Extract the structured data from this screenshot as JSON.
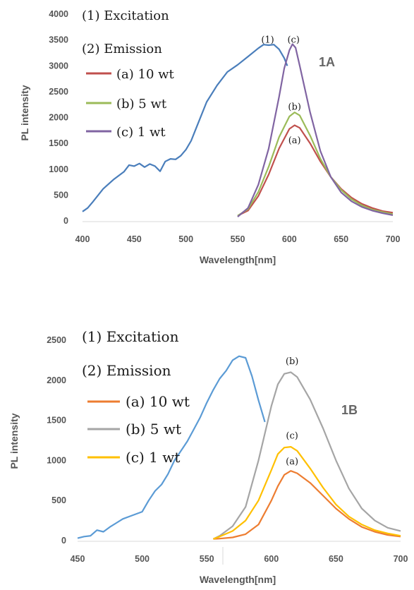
{
  "chart_data": [
    {
      "id": "1A",
      "type": "line",
      "panel_label": "1A",
      "xlabel": "Wavelength[nm]",
      "ylabel": "PL intensity",
      "xlim": [
        400,
        700
      ],
      "ylim": [
        0,
        4000
      ],
      "xticks": [
        400,
        450,
        500,
        550,
        600,
        650,
        700
      ],
      "yticks": [
        0,
        500,
        1000,
        1500,
        2000,
        2500,
        3000,
        3500,
        4000
      ],
      "grid": false,
      "legend_position": "top-left",
      "legend_headers": [
        "(1) Excitation",
        "(2) Emission"
      ],
      "series": [
        {
          "name": "(1) Excitation",
          "legend": false,
          "color": "#4a7ebb",
          "x": [
            400,
            405,
            410,
            420,
            430,
            440,
            445,
            450,
            455,
            460,
            465,
            470,
            475,
            480,
            485,
            490,
            495,
            500,
            505,
            510,
            520,
            530,
            540,
            550,
            560,
            570,
            575,
            580,
            585,
            590,
            595,
            598
          ],
          "y": [
            180,
            250,
            370,
            620,
            800,
            950,
            1080,
            1060,
            1110,
            1040,
            1100,
            1060,
            960,
            1150,
            1200,
            1190,
            1260,
            1380,
            1550,
            1800,
            2300,
            2620,
            2880,
            3020,
            3180,
            3340,
            3410,
            3400,
            3410,
            3320,
            3150,
            3000
          ]
        },
        {
          "name": "(a) 10 wt",
          "legend": true,
          "color": "#c0504d",
          "x": [
            550,
            560,
            570,
            580,
            590,
            600,
            605,
            610,
            620,
            630,
            640,
            650,
            660,
            670,
            680,
            690,
            700
          ],
          "y": [
            100,
            200,
            480,
            900,
            1400,
            1780,
            1850,
            1800,
            1500,
            1150,
            850,
            620,
            450,
            330,
            250,
            190,
            160
          ]
        },
        {
          "name": "(b) 5 wt",
          "legend": true,
          "color": "#9bbb59",
          "x": [
            550,
            560,
            570,
            580,
            590,
            600,
            605,
            610,
            620,
            630,
            640,
            650,
            660,
            670,
            680,
            690,
            700
          ],
          "y": [
            100,
            230,
            560,
            1050,
            1620,
            2020,
            2100,
            2040,
            1650,
            1200,
            850,
            600,
            420,
            300,
            220,
            170,
            130
          ]
        },
        {
          "name": "(c) 1 wt",
          "legend": true,
          "color": "#8064a2",
          "x": [
            550,
            560,
            570,
            580,
            590,
            595,
            600,
            603,
            606,
            610,
            620,
            630,
            640,
            650,
            660,
            670,
            680,
            690,
            700
          ],
          "y": [
            80,
            250,
            700,
            1400,
            2400,
            2950,
            3300,
            3420,
            3350,
            3000,
            2100,
            1350,
            850,
            550,
            380,
            270,
            200,
            150,
            110
          ]
        }
      ],
      "annotations": [
        {
          "text": "(1)",
          "x": 579,
          "y": 3450
        },
        {
          "text": "(c)",
          "x": 604,
          "y": 3450
        },
        {
          "text": "(b)",
          "x": 605,
          "y": 2150
        },
        {
          "text": "(a)",
          "x": 605,
          "y": 1500
        }
      ]
    },
    {
      "id": "1B",
      "type": "line",
      "panel_label": "1B",
      "xlabel": "Wavelength[nm]",
      "ylabel": "PL intensity",
      "xlim": [
        450,
        700
      ],
      "ylim": [
        0,
        2500
      ],
      "xticks": [
        450,
        500,
        550,
        600,
        650,
        700
      ],
      "yticks": [
        0,
        500,
        1000,
        1500,
        2000,
        2500
      ],
      "grid": false,
      "legend_position": "top-left",
      "legend_headers": [
        "(1) Excitation",
        "(2) Emission"
      ],
      "series": [
        {
          "name": "(1) Excitation",
          "legend": false,
          "color": "#5b9bd5",
          "x": [
            450,
            455,
            460,
            465,
            470,
            475,
            480,
            485,
            490,
            495,
            500,
            505,
            510,
            515,
            520,
            525,
            530,
            535,
            540,
            545,
            550,
            555,
            560,
            565,
            570,
            575,
            580,
            585,
            590,
            595
          ],
          "y": [
            30,
            50,
            60,
            130,
            110,
            170,
            220,
            270,
            300,
            330,
            360,
            500,
            620,
            700,
            830,
            1000,
            1120,
            1240,
            1390,
            1540,
            1720,
            1880,
            2020,
            2120,
            2250,
            2300,
            2280,
            2050,
            1750,
            1480
          ]
        },
        {
          "name": "(a) 10 wt",
          "legend": true,
          "color": "#ed7d31",
          "x": [
            555,
            560,
            570,
            580,
            590,
            600,
            605,
            610,
            615,
            620,
            630,
            640,
            650,
            660,
            670,
            680,
            690,
            700
          ],
          "y": [
            20,
            25,
            40,
            80,
            200,
            500,
            680,
            820,
            870,
            840,
            720,
            560,
            400,
            270,
            170,
            110,
            70,
            50
          ]
        },
        {
          "name": "(b) 5 wt",
          "legend": true,
          "color": "#a5a5a5",
          "x": [
            555,
            560,
            570,
            580,
            590,
            600,
            605,
            610,
            615,
            620,
            630,
            640,
            650,
            660,
            670,
            680,
            690,
            700
          ],
          "y": [
            20,
            60,
            180,
            420,
            1000,
            1680,
            1950,
            2080,
            2100,
            2040,
            1760,
            1400,
            1000,
            650,
            400,
            250,
            160,
            120
          ]
        },
        {
          "name": "(c) 1 wt",
          "legend": true,
          "color": "#ffc000",
          "x": [
            555,
            560,
            570,
            580,
            590,
            600,
            605,
            610,
            615,
            620,
            630,
            640,
            650,
            660,
            670,
            680,
            690,
            700
          ],
          "y": [
            20,
            50,
            120,
            250,
            500,
            880,
            1080,
            1160,
            1170,
            1120,
            900,
            660,
            450,
            300,
            200,
            130,
            90,
            60
          ]
        }
      ],
      "annotations": [
        {
          "text": "(b)",
          "x": 616,
          "y": 2200
        },
        {
          "text": "(c)",
          "x": 616,
          "y": 1270
        },
        {
          "text": "(a)",
          "x": 616,
          "y": 950
        }
      ]
    }
  ]
}
